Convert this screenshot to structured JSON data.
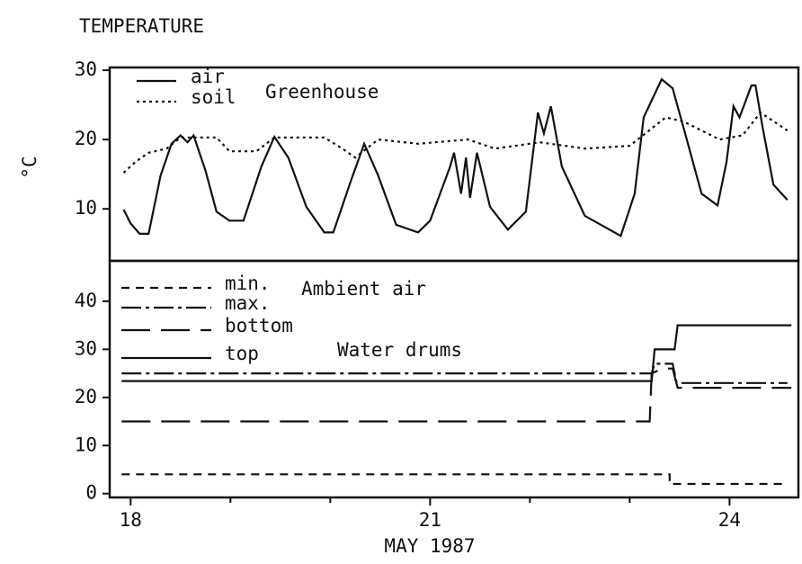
{
  "chart_data": [
    {
      "type": "line",
      "title": "TEMPERATURE",
      "ylabel": "°C",
      "xlim": [
        17.79,
        24.69
      ],
      "ylim": [
        2.5,
        30.4
      ],
      "yticks": [
        10,
        20,
        30
      ],
      "annotations": [
        "Greenhouse"
      ],
      "series": [
        {
          "name": "air",
          "color": "#111111",
          "linestyle": "solid",
          "x": [
            17.93,
            18.0,
            18.09,
            18.18,
            18.3,
            18.41,
            18.5,
            18.57,
            18.63,
            18.75,
            18.86,
            18.99,
            19.13,
            19.31,
            19.44,
            19.58,
            19.76,
            19.94,
            20.03,
            20.21,
            20.34,
            20.48,
            20.66,
            20.88,
            21.0,
            21.2,
            21.24,
            21.31,
            21.36,
            21.4,
            21.47,
            21.6,
            21.78,
            21.96,
            22.08,
            22.14,
            22.21,
            22.32,
            22.55,
            22.91,
            23.05,
            23.14,
            23.32,
            23.43,
            23.56,
            23.72,
            23.88,
            23.97,
            24.04,
            24.1,
            24.22,
            24.26,
            24.33,
            24.44,
            24.58
          ],
          "values": [
            9.9,
            7.9,
            6.4,
            6.4,
            14.8,
            19.4,
            20.6,
            19.6,
            20.6,
            15.5,
            9.6,
            8.3,
            8.3,
            16.1,
            20.4,
            17.4,
            10.3,
            6.6,
            6.6,
            14.2,
            19.4,
            14.8,
            7.7,
            6.6,
            8.3,
            16.1,
            18.1,
            12.2,
            17.4,
            11.6,
            18.1,
            10.3,
            7.0,
            9.6,
            23.9,
            20.9,
            24.8,
            16.1,
            9.0,
            6.1,
            12.2,
            23.2,
            28.7,
            27.4,
            20.6,
            12.2,
            10.5,
            16.8,
            24.8,
            23.2,
            27.8,
            27.8,
            21.9,
            13.5,
            11.3
          ]
        },
        {
          "name": "soil",
          "color": "#111111",
          "linestyle": "dotted",
          "x": [
            17.93,
            18.05,
            18.18,
            18.36,
            18.5,
            18.86,
            18.99,
            19.26,
            19.44,
            19.94,
            20.12,
            20.25,
            20.48,
            20.88,
            21.38,
            21.65,
            22.1,
            22.55,
            23.0,
            23.36,
            23.54,
            23.72,
            23.9,
            24.13,
            24.31,
            24.58
          ],
          "values": [
            15.2,
            16.8,
            18.1,
            18.7,
            20.3,
            20.3,
            18.3,
            18.3,
            20.3,
            20.3,
            18.7,
            17.4,
            20.0,
            19.4,
            20.0,
            18.7,
            19.6,
            18.7,
            19.1,
            23.2,
            22.6,
            21.3,
            20.0,
            20.6,
            23.9,
            21.3
          ]
        }
      ]
    },
    {
      "type": "line",
      "xlabel": "MAY 1987",
      "xlim": [
        17.79,
        24.69
      ],
      "xticks": [
        18,
        21,
        24
      ],
      "xminorticks": [
        19,
        20,
        22,
        23
      ],
      "ylim": [
        -0.8,
        48.4
      ],
      "yticks": [
        0,
        10,
        20,
        30,
        40
      ],
      "annotations": [
        "Ambient air",
        "Water drums"
      ],
      "series": [
        {
          "name": "min.",
          "color": "#111111",
          "linestyle": "dashed",
          "x": [
            17.91,
            23.4,
            23.4,
            24.58
          ],
          "values": [
            4,
            4,
            2,
            2
          ]
        },
        {
          "name": "max.",
          "color": "#111111",
          "linestyle": "dashdot",
          "x": [
            17.91,
            23.22,
            23.25,
            23.43,
            23.47,
            24.58
          ],
          "values": [
            25,
            25,
            27,
            27,
            23,
            23
          ]
        },
        {
          "name": "bottom",
          "color": "#111111",
          "linestyle": "longdash",
          "x": [
            17.91,
            23.2,
            23.22,
            23.33,
            23.43,
            23.48,
            24.62
          ],
          "values": [
            15,
            15,
            25,
            26,
            26,
            22,
            22
          ]
        },
        {
          "name": "top",
          "color": "#111111",
          "linestyle": "solid",
          "x": [
            17.91,
            23.22,
            23.25,
            23.45,
            23.48,
            24.62
          ],
          "values": [
            23.4,
            23.4,
            30,
            30,
            35,
            35
          ]
        }
      ]
    }
  ]
}
